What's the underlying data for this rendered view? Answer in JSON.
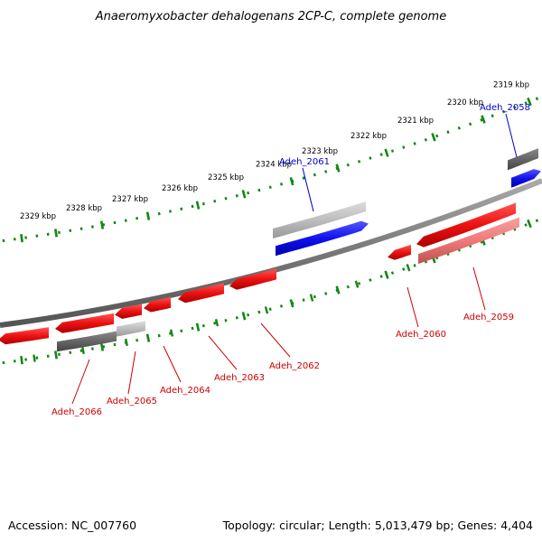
{
  "title": "Anaeromyxobacter dehalogenans 2CP-C, complete genome",
  "accession": "Accession: NC_007760",
  "topology": "Topology: circular; Length: 5,013,479 bp; Genes: 4,404",
  "colors": {
    "forward": "#ee1111",
    "forward_light": "#f07a7a",
    "reverse": "#1111ee",
    "rna": "#666666",
    "rna_light": "#bdbdbd",
    "tick": "#118811",
    "backbone": "#777777",
    "label_red": "#cc0000",
    "label_blue": "#0000cc"
  },
  "ticks_outer": [
    {
      "label": "2319 kbp"
    },
    {
      "label": "2320 kbp"
    },
    {
      "label": "2321 kbp"
    },
    {
      "label": "2322 kbp"
    },
    {
      "label": "2323 kbp"
    },
    {
      "label": "2324 kbp"
    },
    {
      "label": "2325 kbp"
    },
    {
      "label": "2326 kbp"
    },
    {
      "label": "2327 kbp"
    },
    {
      "label": "2328 kbp"
    },
    {
      "label": "2329 kbp"
    }
  ],
  "gene_labels": [
    {
      "name": "Adeh_2058",
      "color": "blue"
    },
    {
      "name": "Adeh_2061",
      "color": "blue"
    },
    {
      "name": "Adeh_2059",
      "color": "red"
    },
    {
      "name": "Adeh_2060",
      "color": "red"
    },
    {
      "name": "Adeh_2062",
      "color": "red"
    },
    {
      "name": "Adeh_2063",
      "color": "red"
    },
    {
      "name": "Adeh_2064",
      "color": "red"
    },
    {
      "name": "Adeh_2065",
      "color": "red"
    },
    {
      "name": "Adeh_2066",
      "color": "red"
    }
  ]
}
